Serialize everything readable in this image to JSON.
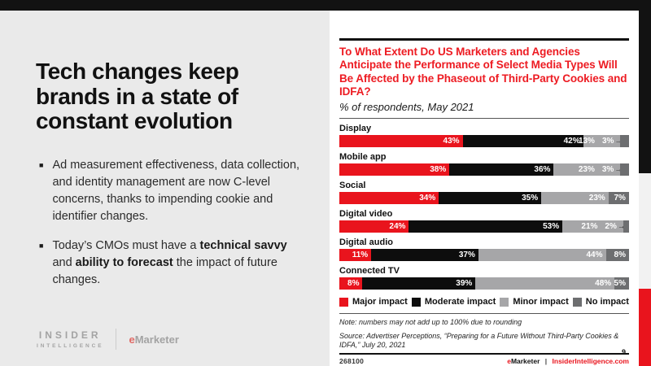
{
  "slide": {
    "page_number": "9",
    "left": {
      "headline": "Tech changes keep brands in a state of constant evolution",
      "bullets": [
        {
          "segments": [
            {
              "text": "Ad measurement effectiveness, data collection, and identity management are now C-level concerns, thanks to impending cookie and identifier changes.",
              "bold": false
            }
          ]
        },
        {
          "segments": [
            {
              "text": "Today’s CMOs must have a ",
              "bold": false
            },
            {
              "text": "technical savvy",
              "bold": true
            },
            {
              "text": " and ",
              "bold": false
            },
            {
              "text": "ability to forecast",
              "bold": true
            },
            {
              "text": " the impact of future changes.",
              "bold": false
            }
          ]
        }
      ],
      "logo": {
        "line1": "INSIDER",
        "line2": "INTELLIGENCE",
        "brand_e": "e",
        "brand_rest": "Marketer"
      }
    },
    "chart_header": {
      "title": "To What Extent Do US Marketers and Agencies Anticipate the Performance of Select Media Types Will Be Affected by the Phaseout of Third-Party Cookies and IDFA?",
      "subtitle": "% of respondents, May 2021"
    },
    "chart_footer": {
      "note": "Note: numbers may not add up to 100% due to rounding",
      "source": "Source: Advertiser Perceptions, “Preparing for a Future Without Third-Party Cookies & IDFA,” July 20, 2021",
      "chart_id": "268100",
      "brand_e": "e",
      "brand_rest": "Marketer",
      "divider": "|",
      "site": "InsiderIntelligence.com"
    },
    "colors": {
      "accent_red": "#e9141d",
      "title_red": "#ed1b22",
      "frame_black": "#121212",
      "left_panel_gray": "#eaeaea",
      "strip_light_gray": "#f2f2f2"
    }
  },
  "chart_data": {
    "type": "bar",
    "orientation": "horizontal_stacked",
    "title": "To What Extent Do US Marketers and Agencies Anticipate the Performance of Select Media Types Will Be Affected by the Phaseout of Third-Party Cookies and IDFA?",
    "subtitle": "% of respondents, May 2021",
    "categories": [
      "Display",
      "Mobile app",
      "Social",
      "Digital video",
      "Digital audio",
      "Connected TV"
    ],
    "series": [
      {
        "name": "Major impact",
        "color": "#e9141d",
        "values": [
          43,
          38,
          34,
          24,
          11,
          8
        ]
      },
      {
        "name": "Moderate impact",
        "color": "#0d0d0d",
        "values": [
          42,
          36,
          35,
          53,
          37,
          39
        ]
      },
      {
        "name": "Minor impact",
        "color": "#a6a6a8",
        "values": [
          13,
          23,
          23,
          21,
          44,
          48
        ]
      },
      {
        "name": "No impact",
        "color": "#6d6e70",
        "values": [
          3,
          3,
          7,
          2,
          8,
          5
        ]
      }
    ],
    "value_suffix": "%",
    "legend_position": "bottom",
    "layout": {
      "bar_labels": "inside_right",
      "small_segment_arrow_threshold": 3,
      "arrow_glyph": "→"
    }
  }
}
